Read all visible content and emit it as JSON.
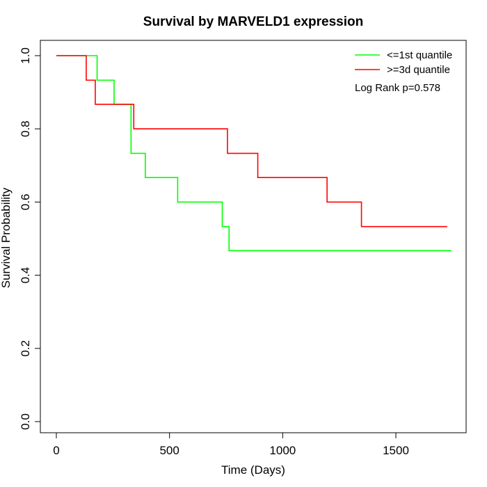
{
  "chart_data": {
    "type": "line",
    "step": true,
    "title": "Survival by MARVELD1 expression",
    "xlabel": "Time (Days)",
    "ylabel": "Survival Probability",
    "xlim": [
      0,
      1800
    ],
    "ylim": [
      0,
      1.0
    ],
    "x_ticks": [
      0,
      500,
      1000,
      1500
    ],
    "y_ticks": [
      0.0,
      0.2,
      0.4,
      0.6,
      0.8,
      1.0
    ],
    "x_tick_labels": [
      "0",
      "500",
      "1000",
      "1500"
    ],
    "y_tick_labels": [
      "0.0",
      "0.2",
      "0.4",
      "0.6",
      "0.8",
      "1.0"
    ],
    "grid": false,
    "legend_position": "top-right",
    "annotation": "Log Rank p=0.578",
    "series": [
      {
        "name": "<=1st quantile",
        "color": "#00ff00",
        "x": [
          0,
          180,
          255,
          330,
          393,
          536,
          733,
          763,
          1745
        ],
        "y": [
          1.0,
          0.933,
          0.867,
          0.733,
          0.667,
          0.6,
          0.533,
          0.467,
          0.467
        ]
      },
      {
        "name": ">=3d quantile",
        "color": "#ff0000",
        "x": [
          0,
          132,
          172,
          342,
          756,
          890,
          1196,
          1348,
          1727
        ],
        "y": [
          1.0,
          0.933,
          0.867,
          0.8,
          0.733,
          0.667,
          0.6,
          0.533,
          0.533
        ]
      }
    ]
  }
}
